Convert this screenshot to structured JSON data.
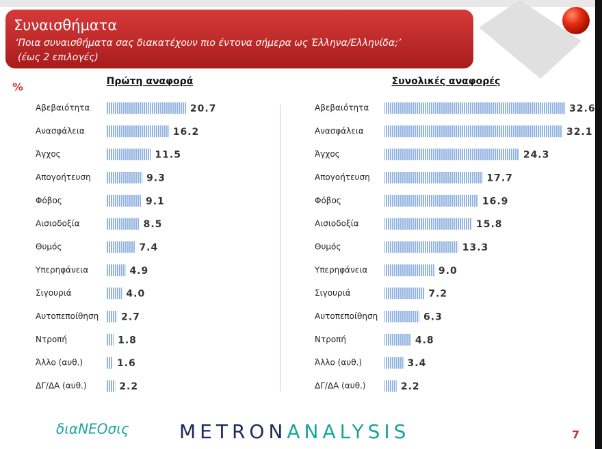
{
  "header": {
    "title": "Συναισθήματα",
    "subtitle": "‘Ποια συναισθήματα σας διακατέχουν πιο έντονα σήμερα ως Έλληνα/Ελληνίδα;’",
    "note": "(έως 2 επιλογές)"
  },
  "unit_label": "%",
  "chart_data": [
    {
      "type": "bar",
      "title": "Πρώτη αναφορά",
      "color": "#93b3e0",
      "categories": [
        "Αβεβαιότητα",
        "Ανασφάλεια",
        "Άγχος",
        "Απογοήτευση",
        "Φόβος",
        "Αισιοδοξία",
        "Θυμός",
        "Υπερηφάνεια",
        "Σιγουριά",
        "Αυτοπεποίθηση",
        "Ντροπή",
        "Άλλο (αυθ.)",
        "ΔΓ/ΔΑ (αυθ.)"
      ],
      "values": [
        20.7,
        16.2,
        11.5,
        9.3,
        9.1,
        8.5,
        7.4,
        4.9,
        4.0,
        2.7,
        1.8,
        1.6,
        2.2
      ],
      "value_labels": [
        "20.7",
        "16.2",
        "11.5",
        "9.3",
        "9.1",
        "8.5",
        "7.4",
        "4.9",
        "4.0",
        "2.7",
        "1.8",
        "1.6",
        "2.2"
      ]
    },
    {
      "type": "bar",
      "title": "Συνολικές αναφορές",
      "color": "#93b3e0",
      "categories": [
        "Αβεβαιότητα",
        "Ανασφάλεια",
        "Άγχος",
        "Απογοήτευση",
        "Φόβος",
        "Αισιοδοξία",
        "Θυμός",
        "Υπερηφάνεια",
        "Σιγουριά",
        "Αυτοπεποίθηση",
        "Ντροπή",
        "Άλλο (αυθ.)",
        "ΔΓ/ΔΑ (αυθ.)"
      ],
      "values": [
        32.6,
        32.1,
        24.3,
        17.7,
        16.9,
        15.8,
        13.3,
        9.0,
        7.2,
        6.3,
        4.8,
        3.4,
        2.2
      ],
      "value_labels": [
        "32.6",
        "32.1",
        "24.3",
        "17.7",
        "16.9",
        "15.8",
        "13.3",
        "9.0",
        "7.2",
        "6.3",
        "4.8",
        "3.4",
        "2.2"
      ]
    }
  ],
  "footer": {
    "logo": "διαΝΕΟσις",
    "brand_a": "METRON",
    "brand_b": "ANALYSIS",
    "page": "7"
  }
}
